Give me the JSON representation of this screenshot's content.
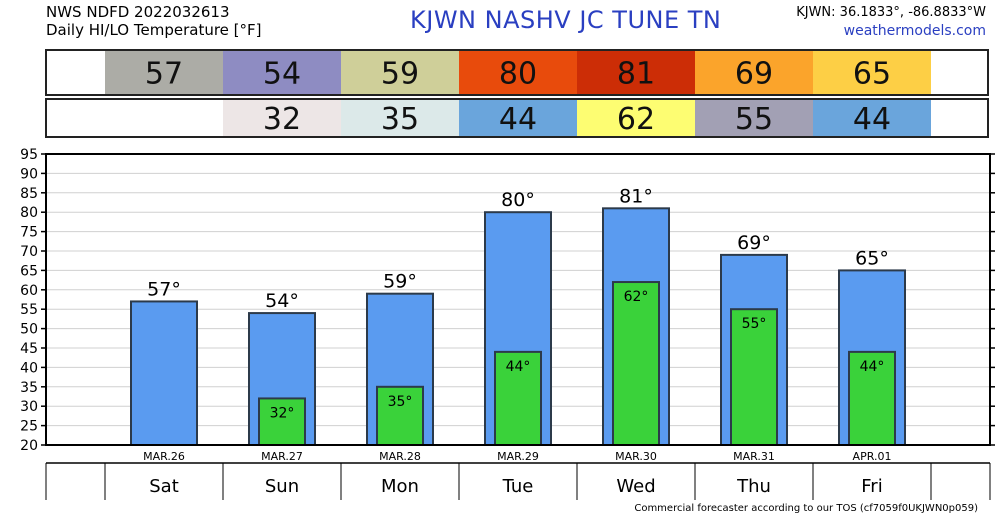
{
  "header": {
    "line1": "NWS NDFD 2022032613",
    "line2": "Daily HI/LO Temperature [°F]",
    "station": "KJWN   NASHV JC TUNE   TN",
    "coords": "KJWN: 36.1833°, -86.8833°W",
    "site": "weathermodels.com"
  },
  "footer": "Commercial forecaster according to our TOS (cf7059f0UKJWN0p059)",
  "chart_data": {
    "type": "bar",
    "categories": [
      "Sat",
      "Sun",
      "Mon",
      "Tue",
      "Wed",
      "Thu",
      "Fri"
    ],
    "dates": [
      "MAR.26",
      "MAR.27",
      "MAR.28",
      "MAR.29",
      "MAR.30",
      "MAR.31",
      "APR.01"
    ],
    "series": [
      {
        "values": [
          57,
          54,
          59,
          80,
          81,
          69,
          65
        ],
        "color": "#5a9bf0"
      },
      {
        "values": [
          null,
          32,
          35,
          44,
          62,
          55,
          44
        ],
        "color": "#3ad23a"
      }
    ],
    "ylim": [
      20,
      95
    ],
    "yticks": [
      20,
      25,
      30,
      35,
      40,
      45,
      50,
      55,
      60,
      65,
      70,
      75,
      80,
      85,
      90,
      95
    ],
    "grid": true,
    "degree_suffix": "°",
    "hi_strip_colors": [
      "#acaca6",
      "#8e8cc2",
      "#cfcf99",
      "#e84b0c",
      "#cc2d06",
      "#fba42b",
      "#fdcf45"
    ],
    "lo_strip_colors": [
      null,
      "#ede6e6",
      "#dce9e9",
      "#6aa5dc",
      "#fdfd72",
      "#a2a0b4",
      "#6aa5dc"
    ]
  }
}
